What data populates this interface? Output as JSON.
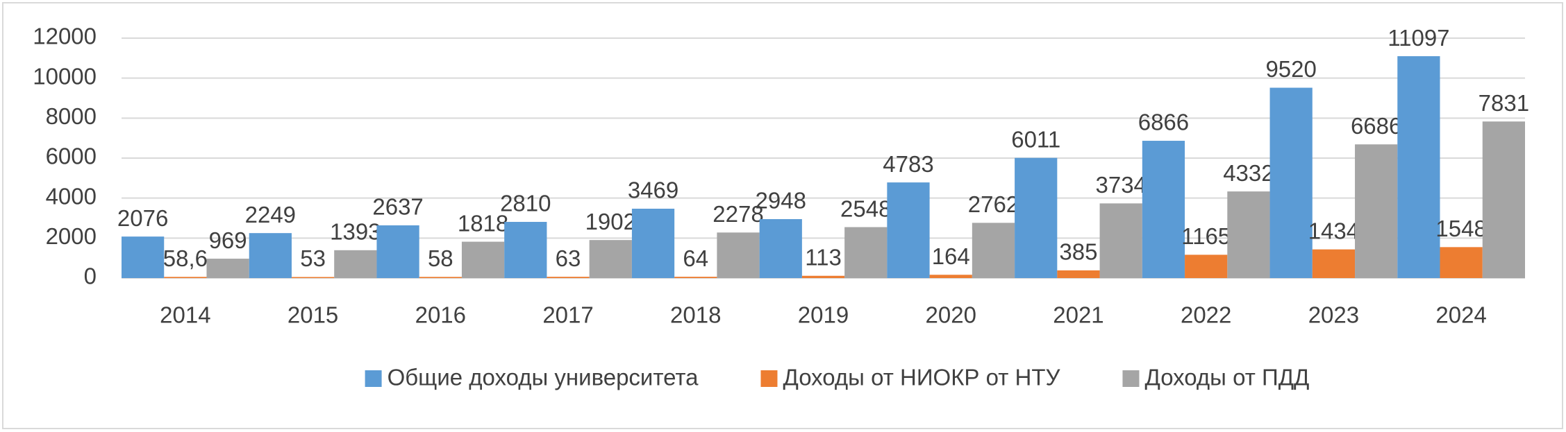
{
  "chart_data": {
    "type": "bar",
    "categories": [
      "2014",
      "2015",
      "2016",
      "2017",
      "2018",
      "2019",
      "2020",
      "2021",
      "2022",
      "2023",
      "2024"
    ],
    "series": [
      {
        "name": "Общие доходы университета",
        "color": "#5b9bd5",
        "values": [
          2076,
          2249,
          2637,
          2810,
          3469,
          2948,
          4783,
          6011,
          6866,
          9520,
          11097
        ]
      },
      {
        "name": "Доходы от НИОКР от НТУ",
        "color": "#ed7d31",
        "values": [
          58.6,
          53,
          58,
          63,
          64,
          113,
          164,
          385,
          1165,
          1434,
          1548
        ],
        "value_labels": [
          "58,6",
          "53",
          "58",
          "63",
          "64",
          "113",
          "164",
          "385",
          "1165",
          "1434",
          "1548"
        ]
      },
      {
        "name": "Доходы от ПДД",
        "color": "#a5a5a5",
        "values": [
          969,
          1393,
          1818,
          1902,
          2278,
          2548,
          2762,
          3734,
          4332,
          6686,
          7831
        ]
      }
    ],
    "ylim": [
      0,
      12000
    ],
    "yticks": [
      0,
      2000,
      4000,
      6000,
      8000,
      10000,
      12000
    ],
    "grid": true,
    "legend": "bottom"
  }
}
